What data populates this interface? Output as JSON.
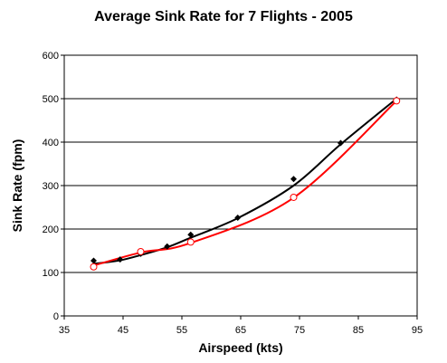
{
  "chart_data": {
    "type": "scatter",
    "title": "Average Sink Rate for 7 Flights -  2005",
    "xlabel": "Airspeed (kts)",
    "ylabel": "Sink Rate (fpm)",
    "xlim": [
      35,
      95
    ],
    "ylim": [
      0,
      600
    ],
    "x_ticks": [
      "35",
      "45",
      "55",
      "65",
      "75",
      "85",
      "95"
    ],
    "y_ticks": [
      "0",
      "100",
      "200",
      "300",
      "400",
      "500",
      "600"
    ],
    "grid": "horizontal",
    "series": [
      {
        "marker": "filled-diamond",
        "color": "#000000",
        "x": [
          40,
          44.5,
          48,
          52.5,
          56.5,
          64.5,
          74,
          82,
          91.5
        ],
        "y": [
          127,
          130,
          143,
          160,
          187,
          226,
          315,
          398,
          498
        ],
        "trendline_y": [
          120,
          128,
          140,
          158,
          180,
          225,
          300,
          395,
          500
        ]
      },
      {
        "marker": "open-circle",
        "color": "#ff0000",
        "x": [
          40,
          48,
          56.5,
          74,
          91.5
        ],
        "y": [
          113,
          148,
          170,
          273,
          495
        ],
        "trendline_y": [
          116,
          146,
          168,
          272,
          495
        ]
      }
    ]
  }
}
